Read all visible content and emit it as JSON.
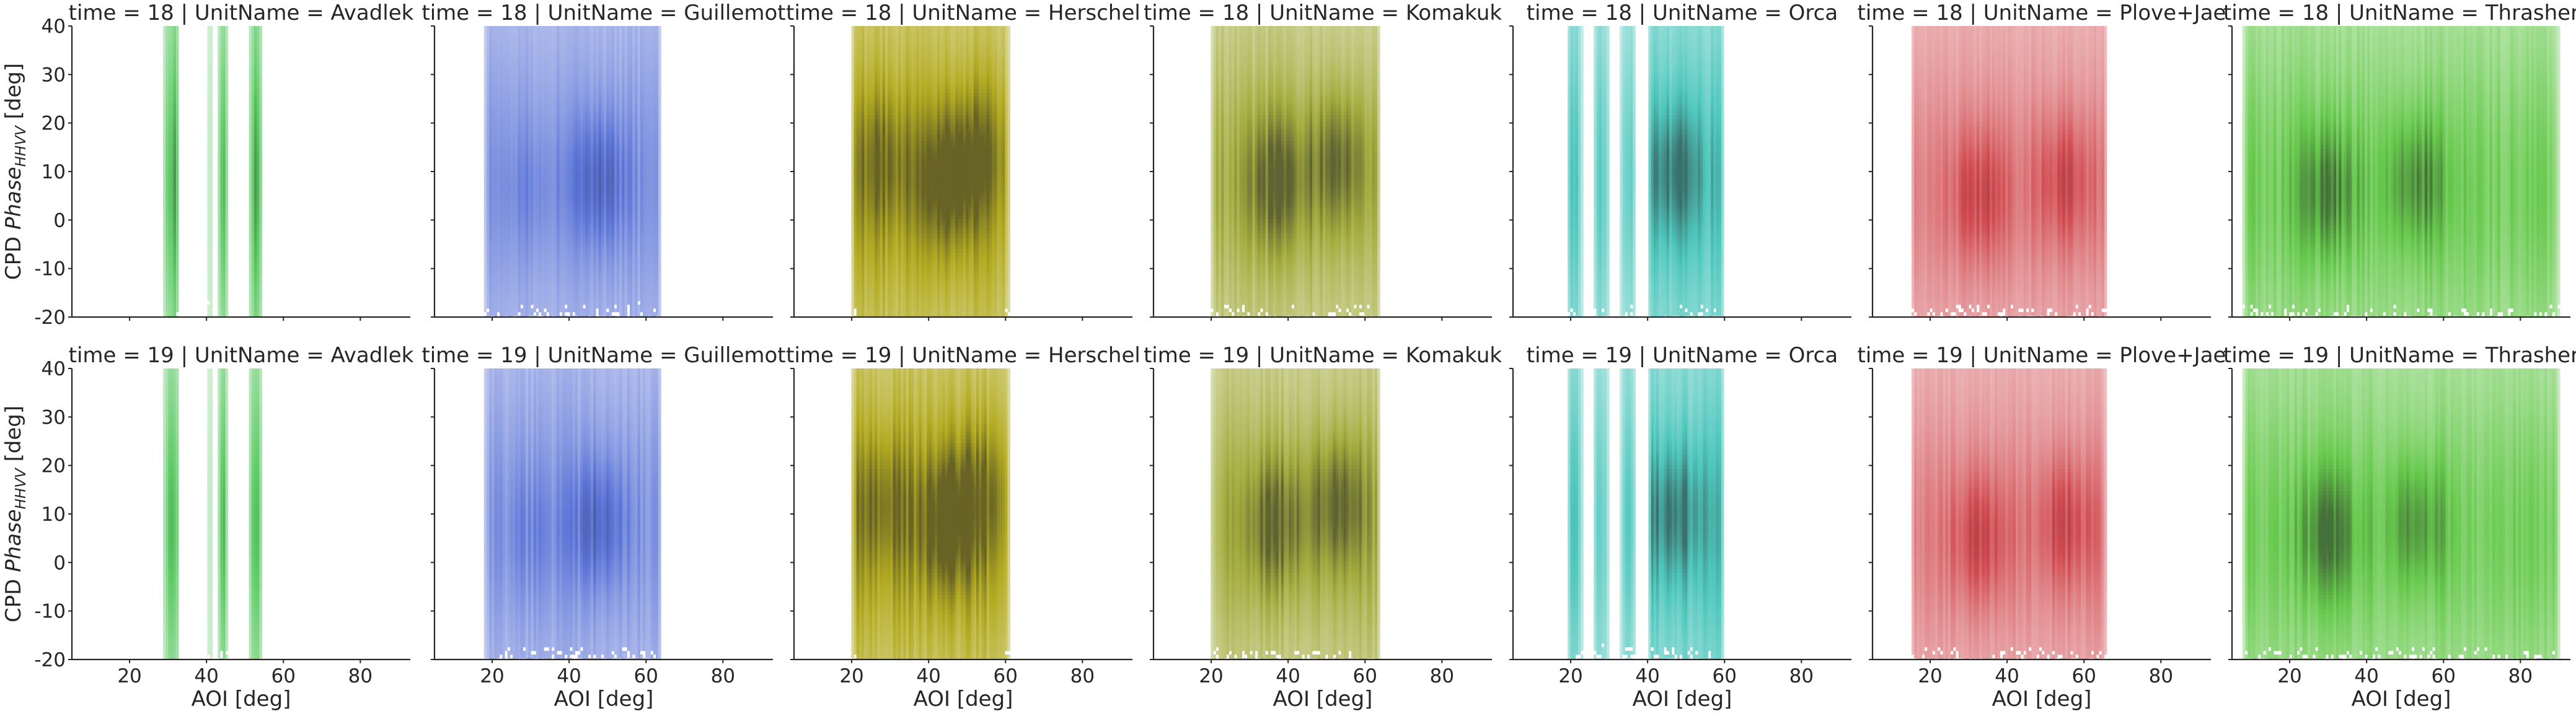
{
  "chart_data": {
    "type": "heatmap",
    "description_grid": "facet grid: rows = time, columns = UnitName",
    "row_facet": "time",
    "col_facet": "UnitName",
    "xlabel": "AOI [deg]",
    "ylabel_main": "CPD Phase",
    "ylabel_sub": "HHVV",
    "ylabel_unit": "[deg]",
    "xlim": [
      5,
      93
    ],
    "ylim": [
      -20,
      40
    ],
    "xticks": [
      20,
      40,
      60,
      80
    ],
    "yticks": [
      -20,
      -10,
      0,
      10,
      20,
      30,
      40
    ],
    "grid": false,
    "rows": [
      {
        "time": "18"
      },
      {
        "time": "19"
      }
    ],
    "units": [
      {
        "name": "Avadlek",
        "color": "#5cc964",
        "aoi_bands": [
          [
            29,
            33,
            1.0
          ],
          [
            40.5,
            41.5,
            0.35
          ],
          [
            43,
            45.5,
            1.0
          ],
          [
            51,
            54.5,
            1.0
          ]
        ],
        "phase_center": 8,
        "phase_spread": 12
      },
      {
        "name": "Guillemot",
        "color": "#5a73d6",
        "aoi_bands": [
          [
            18,
            64,
            0.55
          ]
        ],
        "density_peaks": [
          [
            48,
            8,
            1.0
          ],
          [
            30,
            6,
            0.35
          ]
        ],
        "phase_center": 8,
        "phase_spread": 14
      },
      {
        "name": "Herschel",
        "color": "#b3ab22",
        "aoi_bands": [
          [
            20,
            61,
            0.95
          ]
        ],
        "density_peaks": [
          [
            45,
            8,
            1.0
          ],
          [
            28,
            12,
            0.6
          ],
          [
            53,
            14,
            0.6
          ]
        ],
        "phase_center": 8,
        "phase_spread": 14
      },
      {
        "name": "Komakuk",
        "color": "#a3ac3e",
        "aoi_bands": [
          [
            20,
            64,
            0.8
          ]
        ],
        "density_peaks": [
          [
            37,
            8,
            1.0
          ],
          [
            53,
            12,
            1.0
          ]
        ],
        "phase_center": 8,
        "phase_spread": 13
      },
      {
        "name": "Orca",
        "color": "#4fc7bd",
        "aoi_bands": [
          [
            19,
            23,
            0.8
          ],
          [
            26,
            30,
            0.7
          ],
          [
            33,
            37,
            0.7
          ],
          [
            40,
            60,
            0.85
          ]
        ],
        "density_peaks": [
          [
            47,
            10,
            0.8
          ]
        ],
        "phase_center": 8,
        "phase_spread": 14
      },
      {
        "name": "Plove+Jae",
        "color": "#d04a4f",
        "aoi_bands": [
          [
            15,
            66,
            0.5
          ]
        ],
        "density_peaks": [
          [
            33,
            5,
            1.0
          ],
          [
            55,
            8,
            1.0
          ]
        ],
        "phase_center": 6,
        "phase_spread": 12
      },
      {
        "name": "Thrasher",
        "color": "#67c94d",
        "aoi_bands": [
          [
            8,
            90,
            0.75
          ]
        ],
        "density_peaks": [
          [
            30,
            6,
            1.0
          ],
          [
            53,
            8,
            0.9
          ]
        ],
        "phase_center": 6,
        "phase_spread": 14
      }
    ]
  }
}
